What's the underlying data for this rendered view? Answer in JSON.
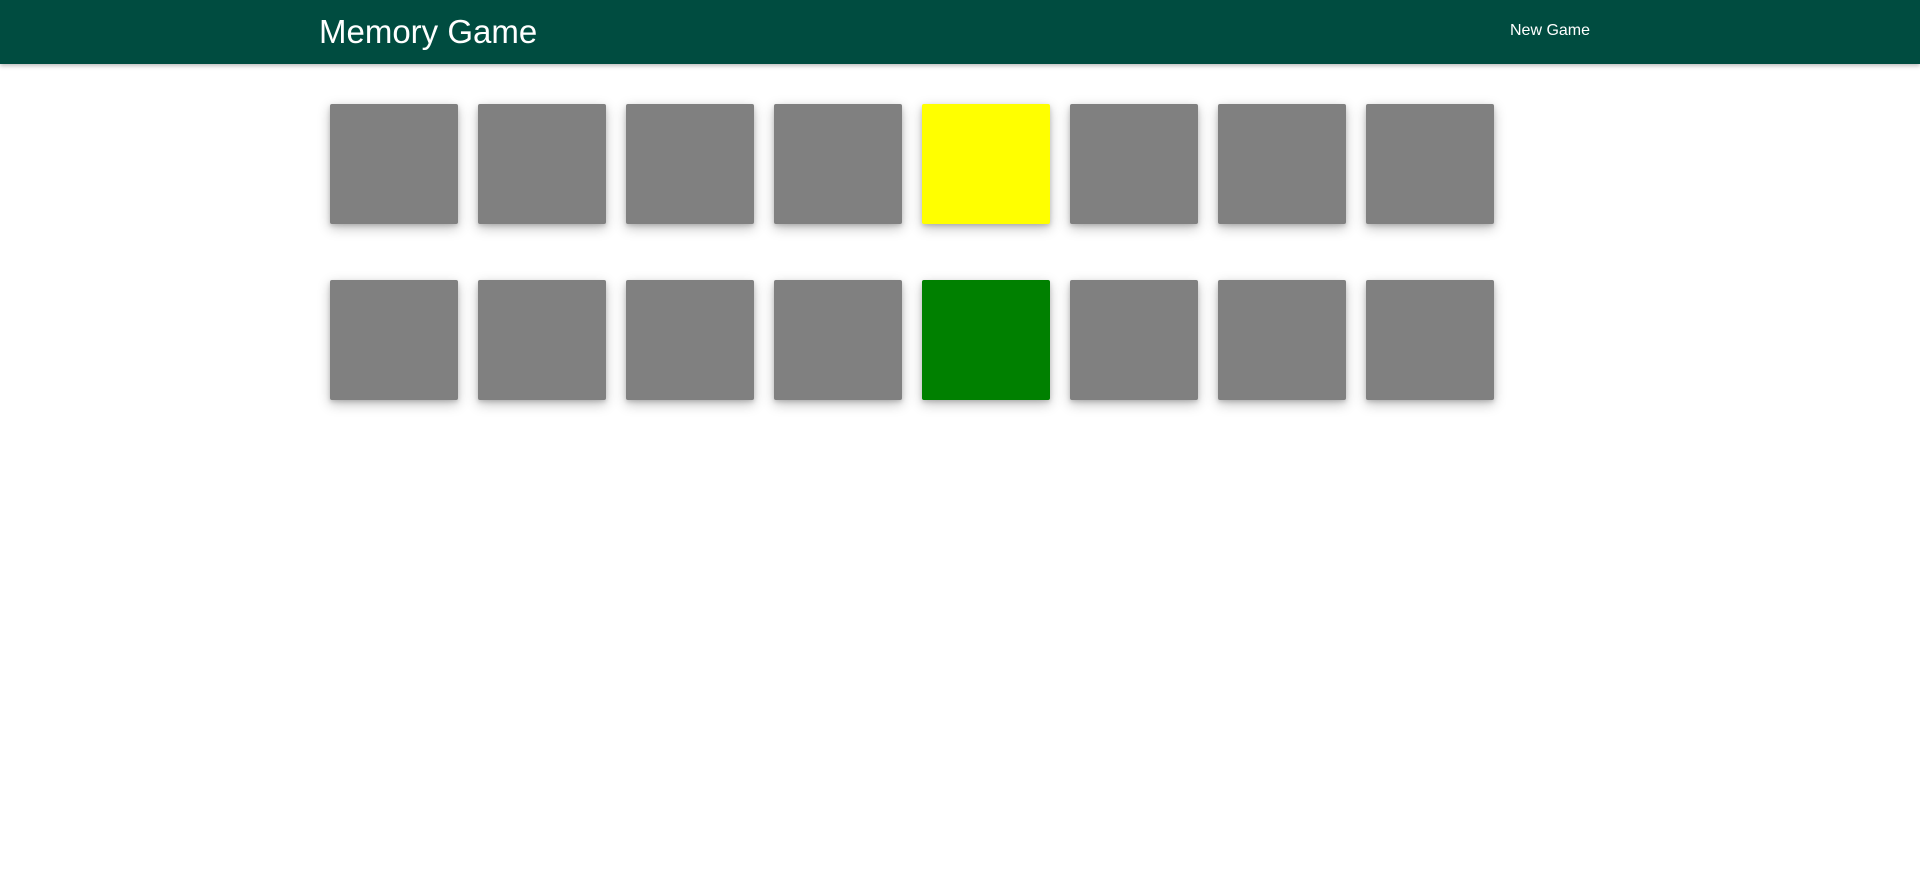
{
  "header": {
    "title": "Memory Game",
    "new_game_label": "New Game",
    "background_color": "#004c40",
    "text_color": "#ffffff"
  },
  "board": {
    "rows": 2,
    "columns": 8,
    "hidden_color": "#808080",
    "cards": [
      {
        "state": "hidden",
        "color": "#808080"
      },
      {
        "state": "hidden",
        "color": "#808080"
      },
      {
        "state": "hidden",
        "color": "#808080"
      },
      {
        "state": "hidden",
        "color": "#808080"
      },
      {
        "state": "revealed",
        "color": "#ffff00"
      },
      {
        "state": "hidden",
        "color": "#808080"
      },
      {
        "state": "hidden",
        "color": "#808080"
      },
      {
        "state": "hidden",
        "color": "#808080"
      },
      {
        "state": "hidden",
        "color": "#808080"
      },
      {
        "state": "hidden",
        "color": "#808080"
      },
      {
        "state": "hidden",
        "color": "#808080"
      },
      {
        "state": "hidden",
        "color": "#808080"
      },
      {
        "state": "revealed",
        "color": "#008000"
      },
      {
        "state": "hidden",
        "color": "#808080"
      },
      {
        "state": "hidden",
        "color": "#808080"
      },
      {
        "state": "hidden",
        "color": "#808080"
      }
    ]
  }
}
